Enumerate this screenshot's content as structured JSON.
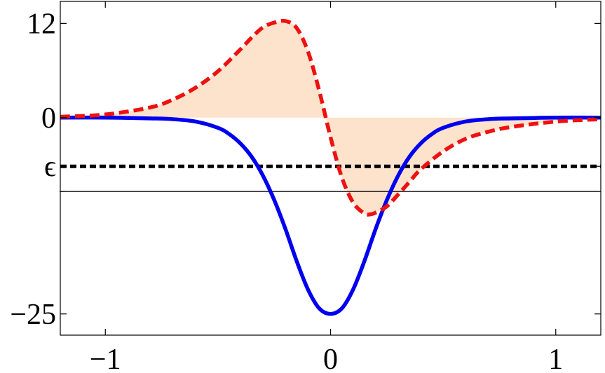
{
  "chart_data": {
    "type": "line",
    "title": "",
    "xlabel": "",
    "ylabel": "",
    "xlim": [
      -1.2,
      1.2
    ],
    "ylim": [
      -27.7,
      14.8
    ],
    "grid": false,
    "legend": "none",
    "x_ticks": [
      {
        "value": -1,
        "label": "−1"
      },
      {
        "value": 0,
        "label": "0"
      },
      {
        "value": 1,
        "label": "1"
      }
    ],
    "y_ticks": [
      {
        "value": 12,
        "label": "12"
      },
      {
        "value": 0,
        "label": "0"
      },
      {
        "value": -6.2,
        "label": "ϵ"
      },
      {
        "value": -25,
        "label": "−25"
      }
    ],
    "y_minor_ticks": [
      -9.4
    ],
    "series": [
      {
        "style": "solid",
        "color": "#0000ee",
        "x": [
          -1.2,
          -1.0,
          -0.8,
          -0.7,
          -0.6,
          -0.5,
          -0.45,
          -0.4,
          -0.35,
          -0.3,
          -0.25,
          -0.2,
          -0.15,
          -0.1,
          -0.05,
          0,
          0.05,
          0.1,
          0.15,
          0.2,
          0.25,
          0.3,
          0.35,
          0.4,
          0.45,
          0.5,
          0.6,
          0.7,
          0.8,
          1.0,
          1.2
        ],
        "y": [
          0,
          0,
          -0.1,
          -0.2,
          -0.5,
          -1.3,
          -2.1,
          -3.3,
          -5.0,
          -7.4,
          -10.5,
          -14.2,
          -18.3,
          -21.9,
          -24.3,
          -25.0,
          -24.3,
          -21.9,
          -18.3,
          -14.2,
          -10.5,
          -7.4,
          -5.0,
          -3.3,
          -2.1,
          -1.3,
          -0.5,
          -0.2,
          -0.1,
          0,
          0
        ]
      },
      {
        "style": "dashed",
        "color": "#ee1111",
        "fill": "#fde3cc",
        "x": [
          -1.2,
          -1.0,
          -0.8,
          -0.7,
          -0.6,
          -0.5,
          -0.4,
          -0.35,
          -0.3,
          -0.25,
          -0.2,
          -0.15,
          -0.1,
          -0.05,
          0,
          0.05,
          0.1,
          0.15,
          0.18,
          0.2,
          0.25,
          0.3,
          0.35,
          0.4,
          0.5,
          0.6,
          0.7,
          0.8,
          1.0,
          1.2
        ],
        "y": [
          0.1,
          0.4,
          1.3,
          2.3,
          3.8,
          5.9,
          8.7,
          10.2,
          11.5,
          12.1,
          12.3,
          11.4,
          8.4,
          3.4,
          -2.5,
          -7.6,
          -10.8,
          -12.2,
          -12.3,
          -12.1,
          -11.3,
          -9.8,
          -8.2,
          -6.6,
          -4.3,
          -2.7,
          -1.8,
          -1.2,
          -0.5,
          -0.2
        ]
      },
      {
        "style": "dotted",
        "color": "#000000",
        "x": [
          -1.2,
          1.2
        ],
        "y": [
          -6.2,
          -6.2
        ]
      },
      {
        "style": "thin",
        "color": "#000000",
        "x": [
          -1.2,
          1.2
        ],
        "y": [
          -9.4,
          -9.4
        ]
      }
    ]
  }
}
